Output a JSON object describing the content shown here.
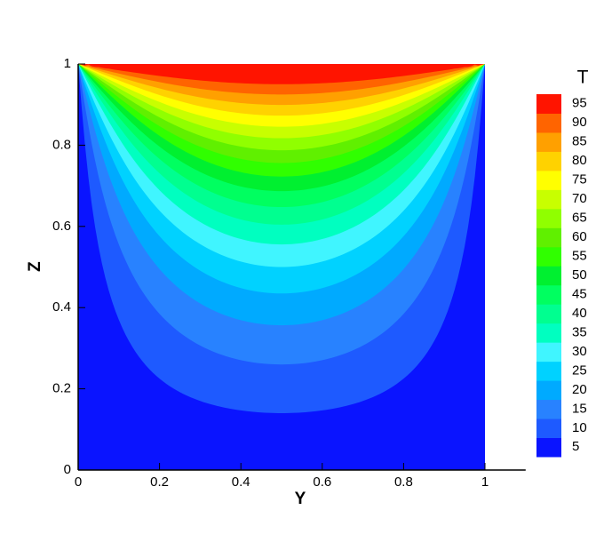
{
  "chart_data": {
    "type": "contour",
    "x_label": "Y",
    "y_label": "Z",
    "legend_title": "T",
    "xlim": [
      0,
      1.1
    ],
    "xticks": [
      0,
      0.2,
      0.4,
      0.6,
      0.8,
      1
    ],
    "ylim": [
      0,
      1
    ],
    "yticks": [
      0,
      0.2,
      0.4,
      0.6,
      0.8,
      1
    ],
    "levels": [
      5,
      10,
      15,
      20,
      25,
      30,
      35,
      40,
      45,
      50,
      55,
      60,
      65,
      70,
      75,
      80,
      85,
      90,
      95
    ],
    "colors": [
      "#0a14ff",
      "#1e5aff",
      "#2882ff",
      "#00aaff",
      "#00d2ff",
      "#40f5ff",
      "#00ffc0",
      "#00ff90",
      "#00ff60",
      "#00f030",
      "#30ff00",
      "#60f000",
      "#90ff00",
      "#c8ff00",
      "#ffff00",
      "#ffd200",
      "#ffa000",
      "#ff6400",
      "#ff1400"
    ],
    "legend_position": "right"
  }
}
